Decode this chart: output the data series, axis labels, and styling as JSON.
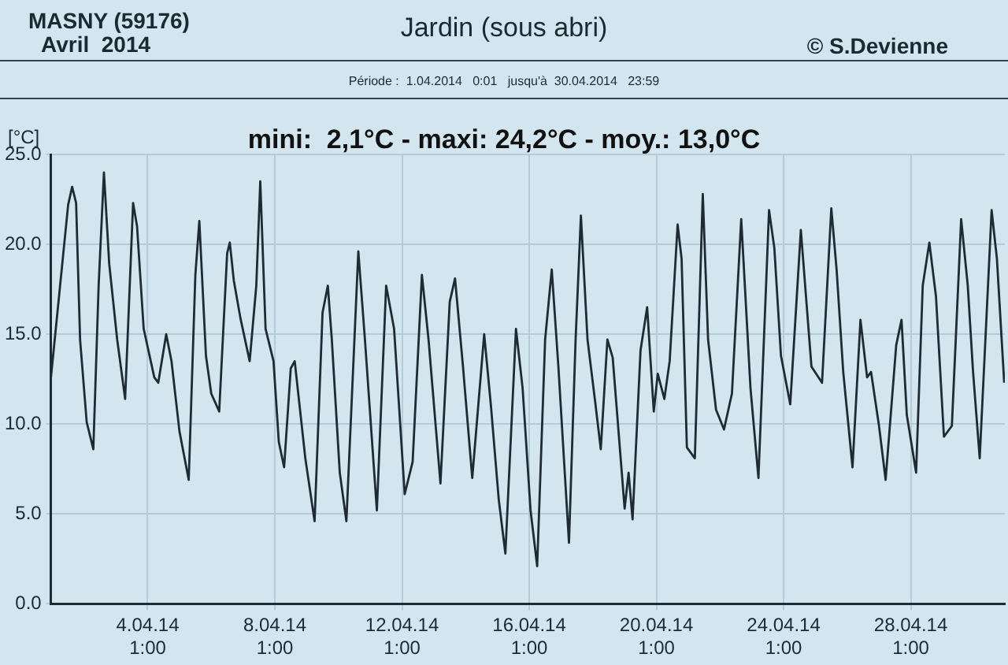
{
  "chart_data": {
    "type": "line",
    "title": "Jardin (sous abri)",
    "subtitle": "mini:  2,1°C - maxi: 24,2°C - moy.: 13,0°C",
    "ylabel": "[°C]",
    "annotations": [
      "MASNY (59176)",
      "Avril  2014",
      "© S.Devienne",
      "Période :  1.04.2014   0:01   jusqu'à  30.04.2014   23:59"
    ],
    "x": [
      "2014-04-01T00:01",
      "2014-04-01T13:00",
      "2014-04-01T16:00",
      "2014-04-01T19:00",
      "2014-04-01T22:00",
      "2014-04-02T03:00",
      "2014-04-02T08:00",
      "2014-04-02T12:00",
      "2014-04-02T16:00",
      "2014-04-02T20:00",
      "2014-04-03T02:00",
      "2014-04-03T08:00",
      "2014-04-03T14:00",
      "2014-04-03T17:00",
      "2014-04-03T22:00",
      "2014-04-04T06:00",
      "2014-04-04T09:00",
      "2014-04-04T15:00",
      "2014-04-04T19:00",
      "2014-04-05T01:00",
      "2014-04-05T08:00",
      "2014-04-05T13:00",
      "2014-04-05T16:00",
      "2014-04-05T21:00",
      "2014-04-06T01:00",
      "2014-04-06T07:00",
      "2014-04-06T13:00",
      "2014-04-06T15:00",
      "2014-04-06T18:00",
      "2014-04-06T23:00",
      "2014-04-07T06:00",
      "2014-04-07T11:00",
      "2014-04-07T14:00",
      "2014-04-07T18:00",
      "2014-04-08T00:00",
      "2014-04-08T04:00",
      "2014-04-08T08:00",
      "2014-04-08T13:00",
      "2014-04-08T16:00",
      "2014-04-09T00:00",
      "2014-04-09T07:00",
      "2014-04-09T13:00",
      "2014-04-09T17:00",
      "2014-04-09T20:00",
      "2014-04-10T02:00",
      "2014-04-10T07:00",
      "2014-04-10T16:00",
      "2014-04-10T21:00",
      "2014-04-11T06:00",
      "2014-04-11T13:00",
      "2014-04-11T19:00",
      "2014-04-12T03:00",
      "2014-04-12T09:00",
      "2014-04-12T16:00",
      "2014-04-12T21:00",
      "2014-04-13T06:00",
      "2014-04-13T13:00",
      "2014-04-13T17:00",
      "2014-04-13T23:00",
      "2014-04-14T06:00",
      "2014-04-14T15:00",
      "2014-04-14T20:00",
      "2014-04-15T02:00",
      "2014-04-15T07:00",
      "2014-04-15T15:00",
      "2014-04-15T20:00",
      "2014-04-16T02:00",
      "2014-04-16T07:00",
      "2014-04-16T13:00",
      "2014-04-16T18:00",
      "2014-04-16T23:00",
      "2014-04-17T07:00",
      "2014-04-17T12:00",
      "2014-04-17T16:00",
      "2014-04-17T21:00",
      "2014-04-18T03:00",
      "2014-04-18T07:00",
      "2014-04-18T12:00",
      "2014-04-18T16:00",
      "2014-04-19T01:00",
      "2014-04-19T04:00",
      "2014-04-19T07:00",
      "2014-04-19T13:00",
      "2014-04-19T18:00",
      "2014-04-19T23:00",
      "2014-04-20T02:00",
      "2014-04-20T07:00",
      "2014-04-20T11:00",
      "2014-04-20T17:00",
      "2014-04-20T20:00",
      "2014-04-21T00:00",
      "2014-04-21T06:00",
      "2014-04-21T12:00",
      "2014-04-21T16:00",
      "2014-04-21T22:00",
      "2014-04-22T04:00",
      "2014-04-22T10:00",
      "2014-04-22T17:00",
      "2014-04-23T00:00",
      "2014-04-23T06:00",
      "2014-04-23T14:00",
      "2014-04-23T18:00",
      "2014-04-23T23:00",
      "2014-04-24T06:00",
      "2014-04-24T14:00",
      "2014-04-24T22:00",
      "2014-04-25T06:00",
      "2014-04-25T13:00",
      "2014-04-25T17:00",
      "2014-04-25T22:00",
      "2014-04-26T05:00",
      "2014-04-26T11:00",
      "2014-04-26T16:00",
      "2014-04-26T19:00",
      "2014-04-27T01:00",
      "2014-04-27T06:00",
      "2014-04-27T14:00",
      "2014-04-27T18:00",
      "2014-04-27T22:00",
      "2014-04-28T05:00",
      "2014-04-28T10:00",
      "2014-04-28T15:00",
      "2014-04-28T20:00",
      "2014-04-29T02:00",
      "2014-04-29T08:00",
      "2014-04-29T15:00",
      "2014-04-29T20:00",
      "2014-04-30T00:00",
      "2014-04-30T05:00",
      "2014-04-30T14:00",
      "2014-04-30T18:00",
      "2014-04-30T23:30"
    ],
    "values": [
      12.6,
      22.2,
      23.2,
      22.3,
      14.7,
      10.1,
      8.6,
      17.7,
      24.0,
      18.9,
      14.7,
      11.4,
      22.3,
      21.0,
      15.3,
      12.6,
      12.3,
      15.0,
      13.5,
      9.6,
      6.9,
      18.3,
      21.3,
      13.8,
      11.7,
      10.7,
      19.5,
      20.1,
      18.0,
      15.9,
      13.5,
      17.7,
      23.5,
      15.3,
      13.5,
      9.0,
      7.6,
      13.1,
      13.5,
      8.1,
      4.6,
      16.2,
      17.7,
      14.7,
      7.3,
      4.6,
      19.6,
      14.7,
      5.2,
      17.7,
      15.3,
      6.1,
      7.9,
      18.3,
      14.7,
      6.7,
      16.8,
      18.1,
      13.2,
      7.0,
      15.0,
      11.1,
      5.8,
      2.8,
      15.3,
      12.0,
      5.2,
      2.1,
      14.7,
      18.6,
      13.2,
      3.4,
      14.7,
      21.6,
      14.7,
      11.1,
      8.6,
      14.7,
      13.7,
      5.3,
      7.3,
      4.7,
      14.1,
      16.5,
      10.7,
      12.8,
      11.4,
      13.5,
      21.1,
      19.2,
      8.7,
      8.1,
      22.8,
      14.7,
      10.8,
      9.7,
      11.7,
      21.4,
      12.0,
      7.0,
      21.9,
      19.8,
      13.8,
      11.1,
      20.8,
      13.2,
      12.3,
      22.0,
      18.6,
      12.9,
      7.6,
      15.8,
      12.6,
      12.9,
      9.9,
      6.9,
      14.4,
      15.8,
      10.5,
      7.3,
      17.7,
      20.1,
      17.1,
      9.3,
      9.9,
      21.4,
      17.7,
      12.9,
      8.1,
      21.9,
      19.2,
      12.3
    ],
    "color": "#1f2b33",
    "xlim": [
      "2014-04-01T00:01",
      "2014-04-30T23:59"
    ],
    "xticks": [
      {
        "value": "2014-04-04T01:00",
        "label": "4.04.14 1:00"
      },
      {
        "value": "2014-04-08T01:00",
        "label": "8.04.14 1:00"
      },
      {
        "value": "2014-04-12T01:00",
        "label": "12.04.14 1:00"
      },
      {
        "value": "2014-04-16T01:00",
        "label": "16.04.14 1:00"
      },
      {
        "value": "2014-04-20T01:00",
        "label": "20.04.14 1:00"
      },
      {
        "value": "2014-04-24T01:00",
        "label": "24.04.14 1:00"
      },
      {
        "value": "2014-04-28T01:00",
        "label": "28.04.14 1:00"
      }
    ],
    "ylim": [
      0,
      25
    ],
    "yticks": [
      {
        "value": 0,
        "label": "0.0"
      },
      {
        "value": 5,
        "label": "5.0"
      },
      {
        "value": 10,
        "label": "10.0"
      },
      {
        "value": 15,
        "label": "15.0"
      },
      {
        "value": 20,
        "label": "20.0"
      },
      {
        "value": 25,
        "label": "25.0"
      }
    ],
    "grid": true,
    "legend": false,
    "marker": "none",
    "line_style": "solid"
  }
}
